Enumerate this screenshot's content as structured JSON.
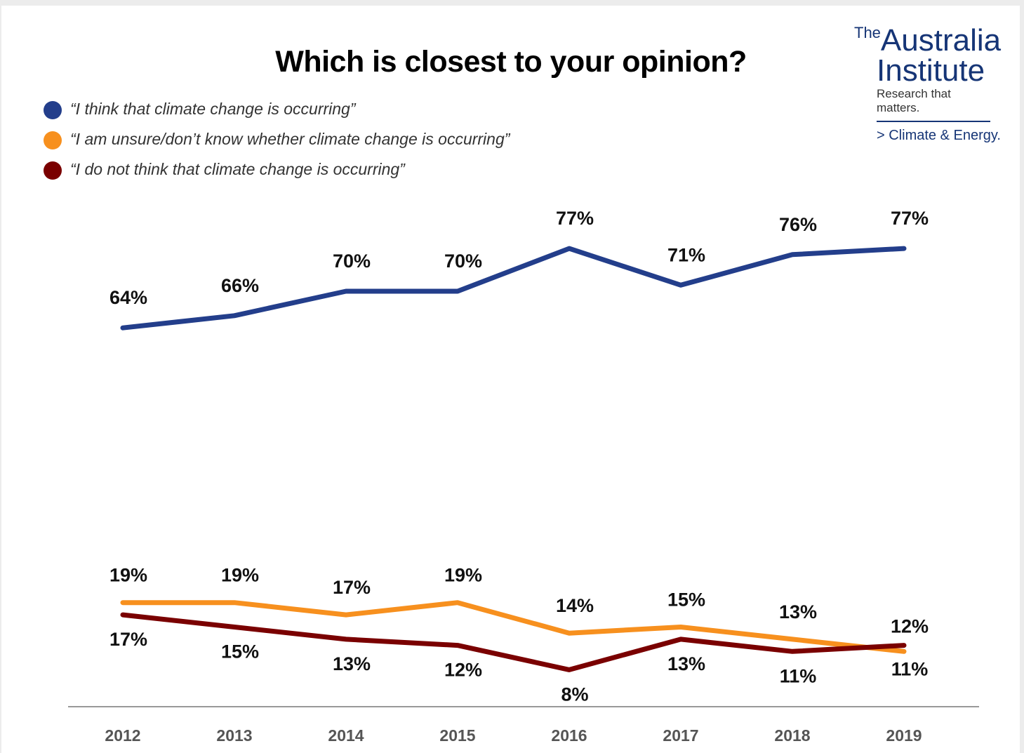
{
  "logo": {
    "the": "The",
    "word1": "Australia",
    "word2": "Institute",
    "tagline": "Research that matters.",
    "subtitle": "> Climate & Energy."
  },
  "colors": {
    "occurring": "#233E8B",
    "unsure": "#F7901E",
    "not_occurring": "#7A0000",
    "axis": "#999999"
  },
  "chart_data": {
    "type": "line",
    "title": "Which is closest to your opinion?",
    "xlabel": "",
    "ylabel": "",
    "ylim": [
      0,
      100
    ],
    "grid": false,
    "legend_position": "top-left",
    "x": [
      "2012",
      "2013",
      "2014",
      "2015",
      "2016",
      "2017",
      "2018",
      "2019"
    ],
    "series": [
      {
        "name": "“I think that climate change is occurring”",
        "color": "#233E8B",
        "values": [
          64,
          66,
          70,
          70,
          77,
          71,
          76,
          77
        ],
        "labels": [
          "64%",
          "66%",
          "70%",
          "70%",
          "77%",
          "71%",
          "76%",
          "77%"
        ]
      },
      {
        "name": "“I am unsure/don’t know whether climate change is occurring”",
        "color": "#F7901E",
        "values": [
          19,
          19,
          17,
          19,
          14,
          15,
          13,
          11
        ],
        "labels": [
          "19%",
          "19%",
          "17%",
          "19%",
          "14%",
          "15%",
          "13%",
          "11%"
        ]
      },
      {
        "name": "“I do not think that climate change is occurring”",
        "color": "#7A0000",
        "values": [
          17,
          15,
          13,
          12,
          8,
          13,
          11,
          12
        ],
        "labels": [
          "17%",
          "15%",
          "13%",
          "12%",
          "8%",
          "13%",
          "11%",
          "12%"
        ]
      }
    ]
  }
}
